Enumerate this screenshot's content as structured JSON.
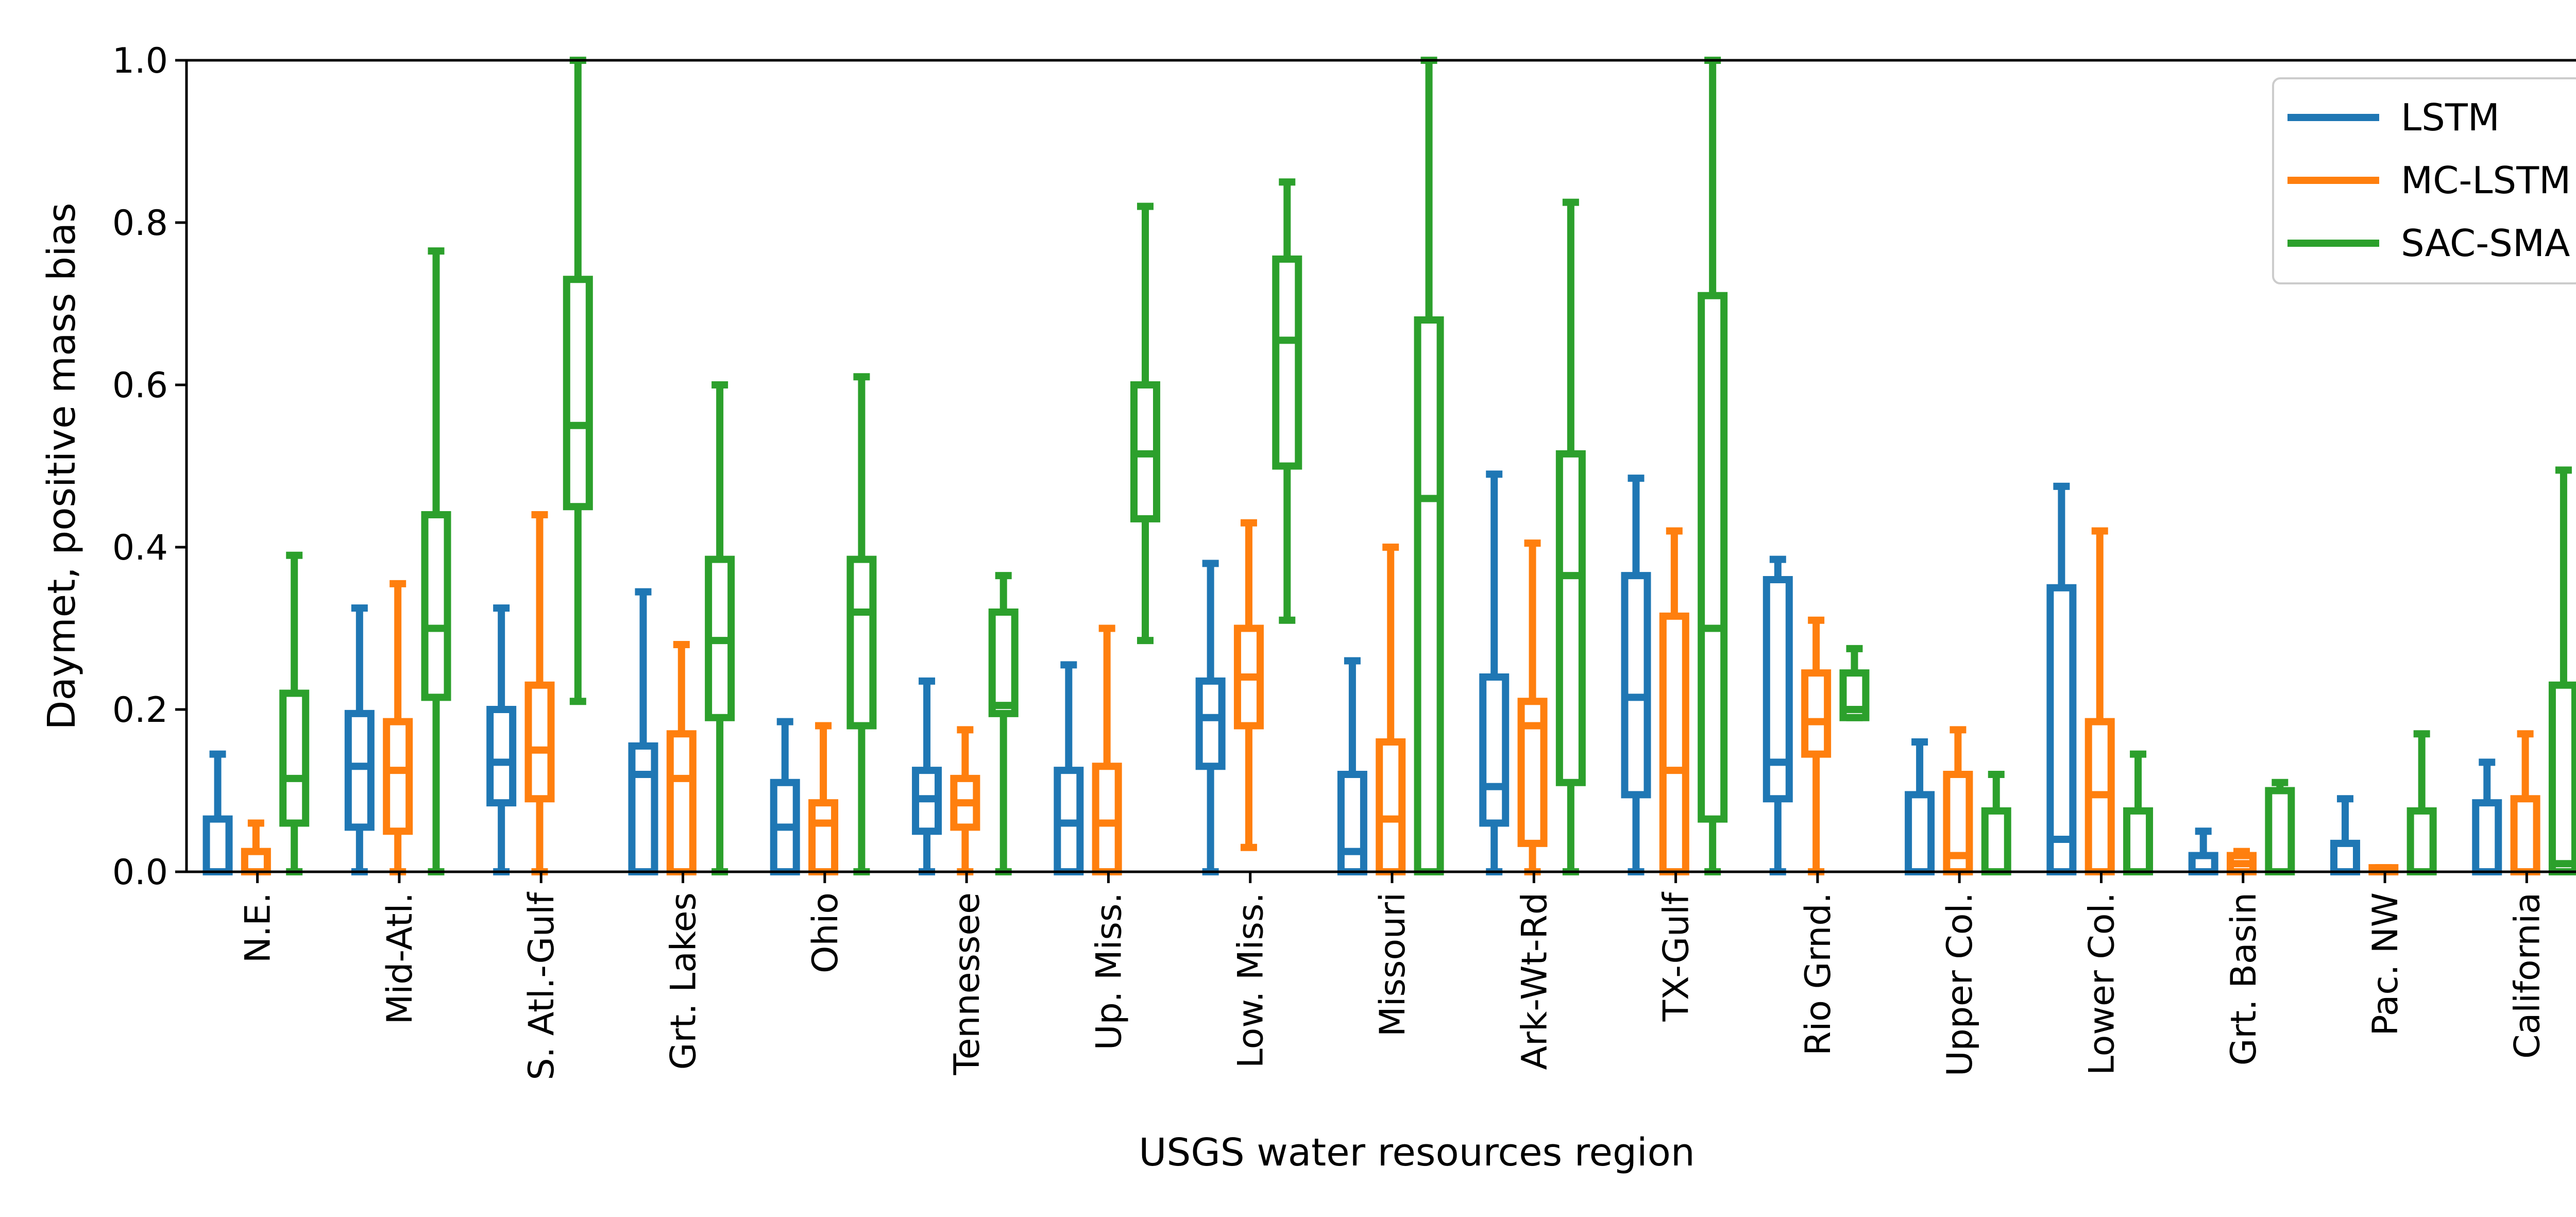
{
  "chart_data": {
    "type": "box",
    "xlabel": "USGS water resources region",
    "ylabel": "Daymet, positive mass bias",
    "ylim": [
      0,
      1.0
    ],
    "yticks": [
      "0.0",
      "0.2",
      "0.4",
      "0.6",
      "0.8",
      "1.0"
    ],
    "grid": false,
    "legend_position": "top-right",
    "categories": [
      "N.E.",
      "Mid-Atl.",
      "S. Atl.-Gulf",
      "Grt. Lakes",
      "Ohio",
      "Tennessee",
      "Up. Miss.",
      "Low. Miss.",
      "Missouri",
      "Ark-Wt-Rd",
      "TX-Gulf",
      "Rio Grnd.",
      "Upper Col.",
      "Lower Col.",
      "Grt. Basin",
      "Pac. NW",
      "California"
    ],
    "series": [
      {
        "name": "LSTM",
        "color": "#1f77b4",
        "boxes": [
          {
            "whislo": 0.0,
            "q1": 0.0,
            "med": 0.0,
            "q3": 0.065,
            "whishi": 0.145
          },
          {
            "whislo": 0.0,
            "q1": 0.055,
            "med": 0.13,
            "q3": 0.195,
            "whishi": 0.325
          },
          {
            "whislo": 0.0,
            "q1": 0.085,
            "med": 0.135,
            "q3": 0.2,
            "whishi": 0.325
          },
          {
            "whislo": 0.0,
            "q1": 0.0,
            "med": 0.12,
            "q3": 0.155,
            "whishi": 0.345
          },
          {
            "whislo": 0.0,
            "q1": 0.0,
            "med": 0.055,
            "q3": 0.11,
            "whishi": 0.185
          },
          {
            "whislo": 0.0,
            "q1": 0.05,
            "med": 0.09,
            "q3": 0.125,
            "whishi": 0.235
          },
          {
            "whislo": 0.0,
            "q1": 0.0,
            "med": 0.06,
            "q3": 0.125,
            "whishi": 0.255
          },
          {
            "whislo": 0.0,
            "q1": 0.13,
            "med": 0.19,
            "q3": 0.235,
            "whishi": 0.38
          },
          {
            "whislo": 0.0,
            "q1": 0.0,
            "med": 0.025,
            "q3": 0.12,
            "whishi": 0.26
          },
          {
            "whislo": 0.0,
            "q1": 0.06,
            "med": 0.105,
            "q3": 0.24,
            "whishi": 0.49
          },
          {
            "whislo": 0.0,
            "q1": 0.095,
            "med": 0.215,
            "q3": 0.365,
            "whishi": 0.485
          },
          {
            "whislo": 0.0,
            "q1": 0.09,
            "med": 0.135,
            "q3": 0.36,
            "whishi": 0.385
          },
          {
            "whislo": 0.0,
            "q1": 0.0,
            "med": 0.0,
            "q3": 0.095,
            "whishi": 0.16
          },
          {
            "whislo": 0.0,
            "q1": 0.0,
            "med": 0.04,
            "q3": 0.35,
            "whishi": 0.475
          },
          {
            "whislo": 0.0,
            "q1": 0.0,
            "med": 0.0,
            "q3": 0.02,
            "whishi": 0.05
          },
          {
            "whislo": 0.0,
            "q1": 0.0,
            "med": 0.0,
            "q3": 0.035,
            "whishi": 0.09
          },
          {
            "whislo": 0.0,
            "q1": 0.0,
            "med": 0.0,
            "q3": 0.085,
            "whishi": 0.135
          }
        ]
      },
      {
        "name": "MC-LSTM",
        "color": "#ff7f0e",
        "boxes": [
          {
            "whislo": 0.0,
            "q1": 0.0,
            "med": 0.0,
            "q3": 0.025,
            "whishi": 0.06
          },
          {
            "whislo": 0.0,
            "q1": 0.05,
            "med": 0.125,
            "q3": 0.185,
            "whishi": 0.355
          },
          {
            "whislo": 0.0,
            "q1": 0.09,
            "med": 0.15,
            "q3": 0.23,
            "whishi": 0.44
          },
          {
            "whislo": 0.0,
            "q1": 0.0,
            "med": 0.115,
            "q3": 0.17,
            "whishi": 0.28
          },
          {
            "whislo": 0.0,
            "q1": 0.0,
            "med": 0.06,
            "q3": 0.085,
            "whishi": 0.18
          },
          {
            "whislo": 0.0,
            "q1": 0.055,
            "med": 0.085,
            "q3": 0.115,
            "whishi": 0.175
          },
          {
            "whislo": 0.0,
            "q1": 0.0,
            "med": 0.06,
            "q3": 0.13,
            "whishi": 0.3
          },
          {
            "whislo": 0.03,
            "q1": 0.18,
            "med": 0.24,
            "q3": 0.3,
            "whishi": 0.43
          },
          {
            "whislo": 0.0,
            "q1": 0.0,
            "med": 0.065,
            "q3": 0.16,
            "whishi": 0.4
          },
          {
            "whislo": 0.0,
            "q1": 0.035,
            "med": 0.18,
            "q3": 0.21,
            "whishi": 0.405
          },
          {
            "whislo": 0.0,
            "q1": 0.0,
            "med": 0.125,
            "q3": 0.315,
            "whishi": 0.42
          },
          {
            "whislo": 0.0,
            "q1": 0.145,
            "med": 0.185,
            "q3": 0.245,
            "whishi": 0.31
          },
          {
            "whislo": 0.0,
            "q1": 0.0,
            "med": 0.02,
            "q3": 0.12,
            "whishi": 0.175
          },
          {
            "whislo": 0.0,
            "q1": 0.0,
            "med": 0.095,
            "q3": 0.185,
            "whishi": 0.42
          },
          {
            "whislo": 0.0,
            "q1": 0.0,
            "med": 0.01,
            "q3": 0.02,
            "whishi": 0.025
          },
          {
            "whislo": 0.0,
            "q1": 0.0,
            "med": 0.0,
            "q3": 0.005,
            "whishi": 0.005
          },
          {
            "whislo": 0.0,
            "q1": 0.0,
            "med": 0.0,
            "q3": 0.09,
            "whishi": 0.17
          }
        ]
      },
      {
        "name": "SAC-SMA",
        "color": "#2ca02c",
        "boxes": [
          {
            "whislo": 0.0,
            "q1": 0.06,
            "med": 0.115,
            "q3": 0.22,
            "whishi": 0.39
          },
          {
            "whislo": 0.0,
            "q1": 0.215,
            "med": 0.3,
            "q3": 0.44,
            "whishi": 0.765
          },
          {
            "whislo": 0.21,
            "q1": 0.45,
            "med": 0.55,
            "q3": 0.73,
            "whishi": 1.0
          },
          {
            "whislo": 0.0,
            "q1": 0.19,
            "med": 0.285,
            "q3": 0.385,
            "whishi": 0.6
          },
          {
            "whislo": 0.0,
            "q1": 0.18,
            "med": 0.32,
            "q3": 0.385,
            "whishi": 0.61
          },
          {
            "whislo": 0.0,
            "q1": 0.195,
            "med": 0.205,
            "q3": 0.32,
            "whishi": 0.365
          },
          {
            "whislo": 0.285,
            "q1": 0.435,
            "med": 0.515,
            "q3": 0.6,
            "whishi": 0.82
          },
          {
            "whislo": 0.31,
            "q1": 0.5,
            "med": 0.655,
            "q3": 0.755,
            "whishi": 0.85
          },
          {
            "whislo": 0.0,
            "q1": 0.0,
            "med": 0.46,
            "q3": 0.68,
            "whishi": 1.0
          },
          {
            "whislo": 0.0,
            "q1": 0.11,
            "med": 0.365,
            "q3": 0.515,
            "whishi": 0.825
          },
          {
            "whislo": 0.0,
            "q1": 0.065,
            "med": 0.3,
            "q3": 0.71,
            "whishi": 1.0
          },
          {
            "whislo": 0.19,
            "q1": 0.19,
            "med": 0.2,
            "q3": 0.245,
            "whishi": 0.275
          },
          {
            "whislo": 0.0,
            "q1": 0.0,
            "med": 0.0,
            "q3": 0.075,
            "whishi": 0.12
          },
          {
            "whislo": 0.0,
            "q1": 0.0,
            "med": 0.0,
            "q3": 0.075,
            "whishi": 0.145
          },
          {
            "whislo": 0.0,
            "q1": 0.0,
            "med": 0.0,
            "q3": 0.1,
            "whishi": 0.11
          },
          {
            "whislo": 0.0,
            "q1": 0.0,
            "med": 0.0,
            "q3": 0.075,
            "whishi": 0.17
          },
          {
            "whislo": 0.0,
            "q1": 0.0,
            "med": 0.01,
            "q3": 0.23,
            "whishi": 0.495
          }
        ]
      }
    ]
  }
}
